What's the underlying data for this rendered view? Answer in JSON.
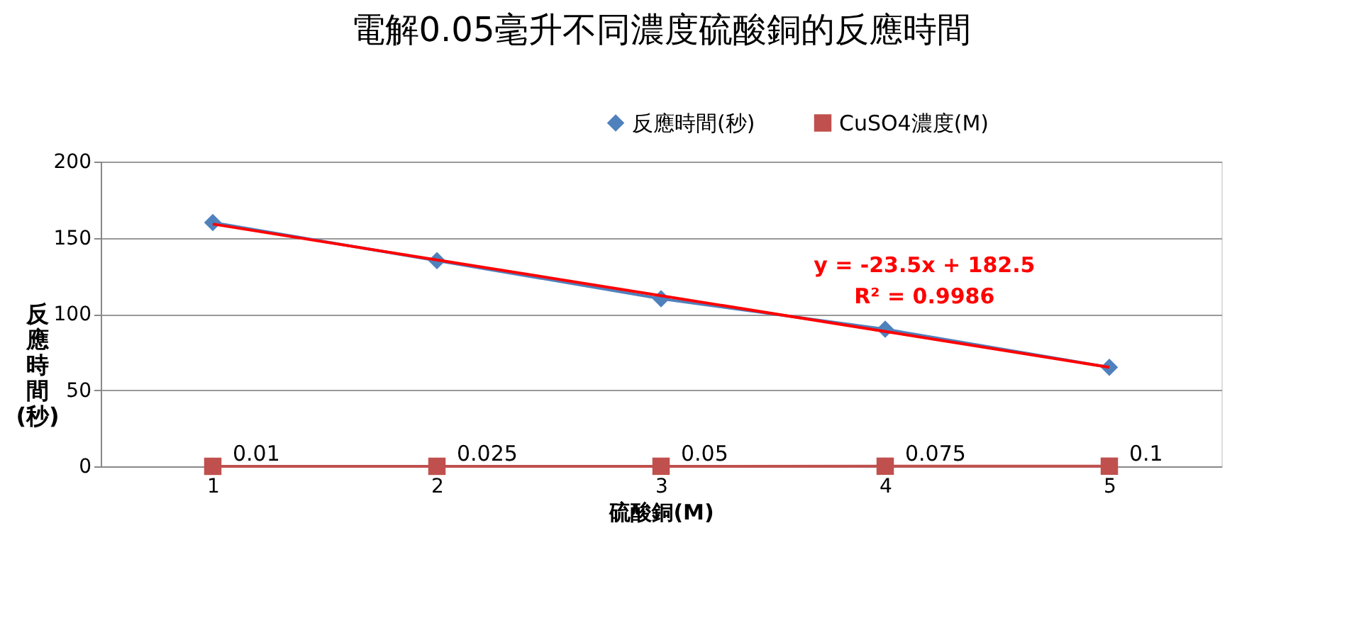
{
  "chart_data": {
    "type": "line",
    "title": "電解0.05毫升不同濃度硫酸銅的反應時間",
    "xlabel": "硫酸銅(M)",
    "ylabel": "反應時間(秒)",
    "categories": [
      "1",
      "2",
      "3",
      "4",
      "5"
    ],
    "series": [
      {
        "name": "反應時間(秒)",
        "color": "#4f81bd",
        "values": [
          160,
          135,
          110,
          90,
          65
        ],
        "marker": "diamond"
      },
      {
        "name": "CuSO4濃度(M)",
        "color": "#c0504d",
        "values": [
          0.01,
          0.025,
          0.05,
          0.075,
          0.1
        ],
        "marker": "square",
        "data_labels": true
      },
      {
        "color": "#ff0000",
        "values": [
          159,
          135.5,
          112,
          88.5,
          65
        ],
        "marker": "none",
        "line_style": "solid"
      }
    ],
    "annotations": [
      "y = -23.5x + 182.5",
      "R² = 0.9986"
    ],
    "ylim": [
      0,
      200
    ],
    "yticks": [
      0,
      50,
      100,
      150,
      200
    ],
    "grid": "y",
    "legend": "top right"
  }
}
